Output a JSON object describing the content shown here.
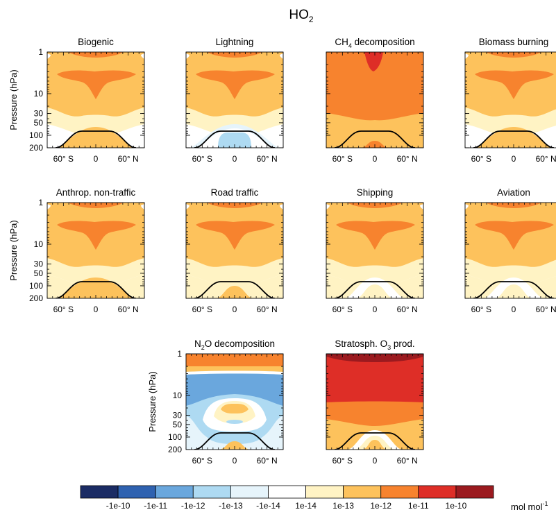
{
  "figure": {
    "title_main": "HO",
    "title_sub": "2",
    "unit_main": "mol mol",
    "unit_sup": "-1"
  },
  "chart_data": {
    "type": "heatmap",
    "x_axis": {
      "range": [
        -90,
        90
      ],
      "ticks": [
        -60,
        0,
        60
      ],
      "tick_labels": [
        "60° S",
        "0",
        "60° N"
      ]
    },
    "y_axis": {
      "label": "Pressure (hPa)",
      "scale": "log",
      "range": [
        1,
        200
      ],
      "ticks": [
        1,
        10,
        30,
        50,
        100,
        200
      ],
      "tick_labels": [
        "1",
        "10",
        "30",
        "50",
        "100",
        "200"
      ]
    },
    "panels": [
      {
        "title": "Biogenic",
        "profile": "yellow_bg",
        "bottom": "white",
        "tropo": "orange"
      },
      {
        "title": "Lightning",
        "profile": "yellow_bg",
        "bottom": "white",
        "tropo": "blue"
      },
      {
        "title": "CH",
        "sub": "4",
        "title_end": " decomposition",
        "profile": "orange_bg"
      },
      {
        "title": "Biomass burning",
        "profile": "yellow_bg",
        "bottom": "white",
        "tropo": "orange"
      },
      {
        "title": "Anthrop. non-traffic",
        "profile": "yellow_bg",
        "bottom": "lightyellow",
        "tropo": "orange"
      },
      {
        "title": "Road traffic",
        "profile": "yellow_bg",
        "bottom": "lightyellow",
        "tropo": "orange_small"
      },
      {
        "title": "Shipping",
        "profile": "yellow_bg",
        "bottom": "lightyellow",
        "tropo": "white_ring"
      },
      {
        "title": "Aviation",
        "profile": "yellow_bg",
        "bottom": "lightyellow",
        "tropo": "white_ring"
      },
      {
        "title": "N",
        "sub": "2",
        "title_end": "O decomposition",
        "profile": "n2o"
      },
      {
        "title": "Stratosph. O",
        "sub": "3",
        "title_end": " prod.",
        "profile": "red_bg"
      }
    ],
    "colorbar": {
      "colors": [
        "#1b2c64",
        "#2f62b0",
        "#6aa7dd",
        "#aedaf2",
        "#e6f4fb",
        "#ffffff",
        "#fff3c4",
        "#fdc25c",
        "#f7832e",
        "#de2e27",
        "#9b1a1f"
      ],
      "labels": [
        "-1e-10",
        "-1e-11",
        "-1e-12",
        "-1e-13",
        "-1e-14",
        "1e-14",
        "1e-13",
        "1e-12",
        "1e-11",
        "1e-10"
      ]
    }
  }
}
